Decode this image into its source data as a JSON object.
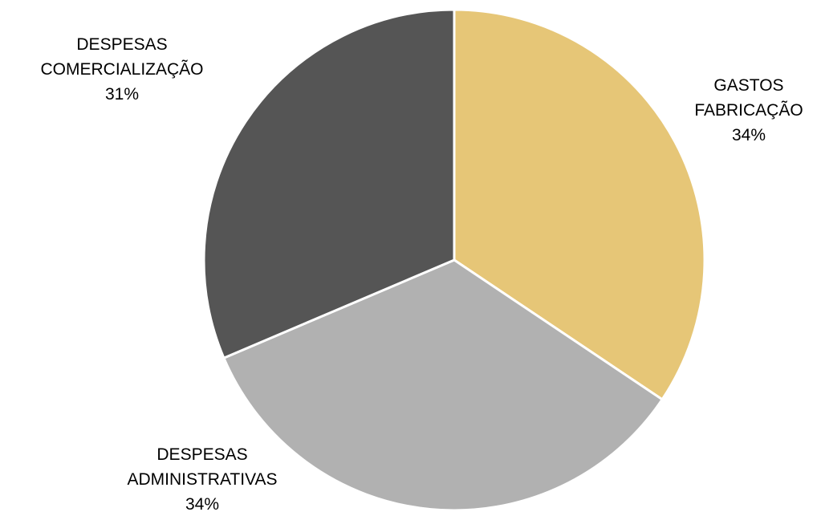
{
  "chart_data": {
    "type": "pie",
    "title": "",
    "slices": [
      {
        "name": "GASTOS FABRICAÇÃO",
        "label_lines": [
          "GASTOS",
          "FABRICAÇÃO"
        ],
        "percent_label": "34%",
        "value": 34.4,
        "color": "#E6C677"
      },
      {
        "name": "DESPESAS ADMINISTRATIVAS",
        "label_lines": [
          "DESPESAS",
          "ADMINISTRATIVAS"
        ],
        "percent_label": "34%",
        "value": 34.2,
        "color": "#B1B1B1"
      },
      {
        "name": "DESPESAS COMERCIALIZAÇÃO",
        "label_lines": [
          "DESPESAS",
          "COMERCIALIZAÇÃO"
        ],
        "percent_label": "31%",
        "value": 31.4,
        "color": "#555555"
      }
    ],
    "start_angle": "12 o'clock",
    "direction": "clockwise",
    "slice_border_color": "#FFFFFF",
    "legend": "none",
    "data_labels": "outside, category name and percentage"
  }
}
